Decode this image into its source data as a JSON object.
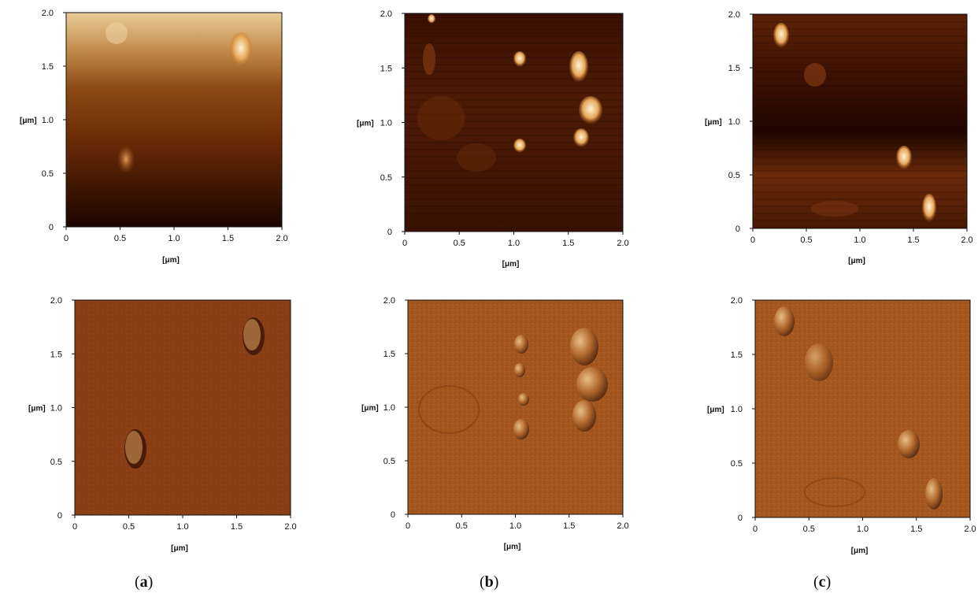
{
  "figure": {
    "axis_unit_label": "[μm]",
    "x_ticks": [
      "0",
      "0.5",
      "1.0",
      "1.5",
      "2.0"
    ],
    "y_ticks": [
      "0",
      "0.5",
      "1.0",
      "1.5",
      "2.0"
    ],
    "axis_range_um": [
      0,
      2.0
    ],
    "panels": [
      {
        "caption_letter": "a",
        "images": [
          "topography",
          "amplitude"
        ]
      },
      {
        "caption_letter": "b",
        "images": [
          "topography",
          "amplitude"
        ]
      },
      {
        "caption_letter": "c",
        "images": [
          "topography",
          "amplitude"
        ]
      }
    ],
    "colors": {
      "topo_dark": "#1a0600",
      "topo_mid": "#7a3308",
      "topo_bright": "#f3d6a1",
      "amplitude_base": "#a4561f",
      "amplitude_panel_a": "#8a3e16"
    }
  },
  "captions": {
    "a": "a",
    "b": "b",
    "c": "c"
  }
}
